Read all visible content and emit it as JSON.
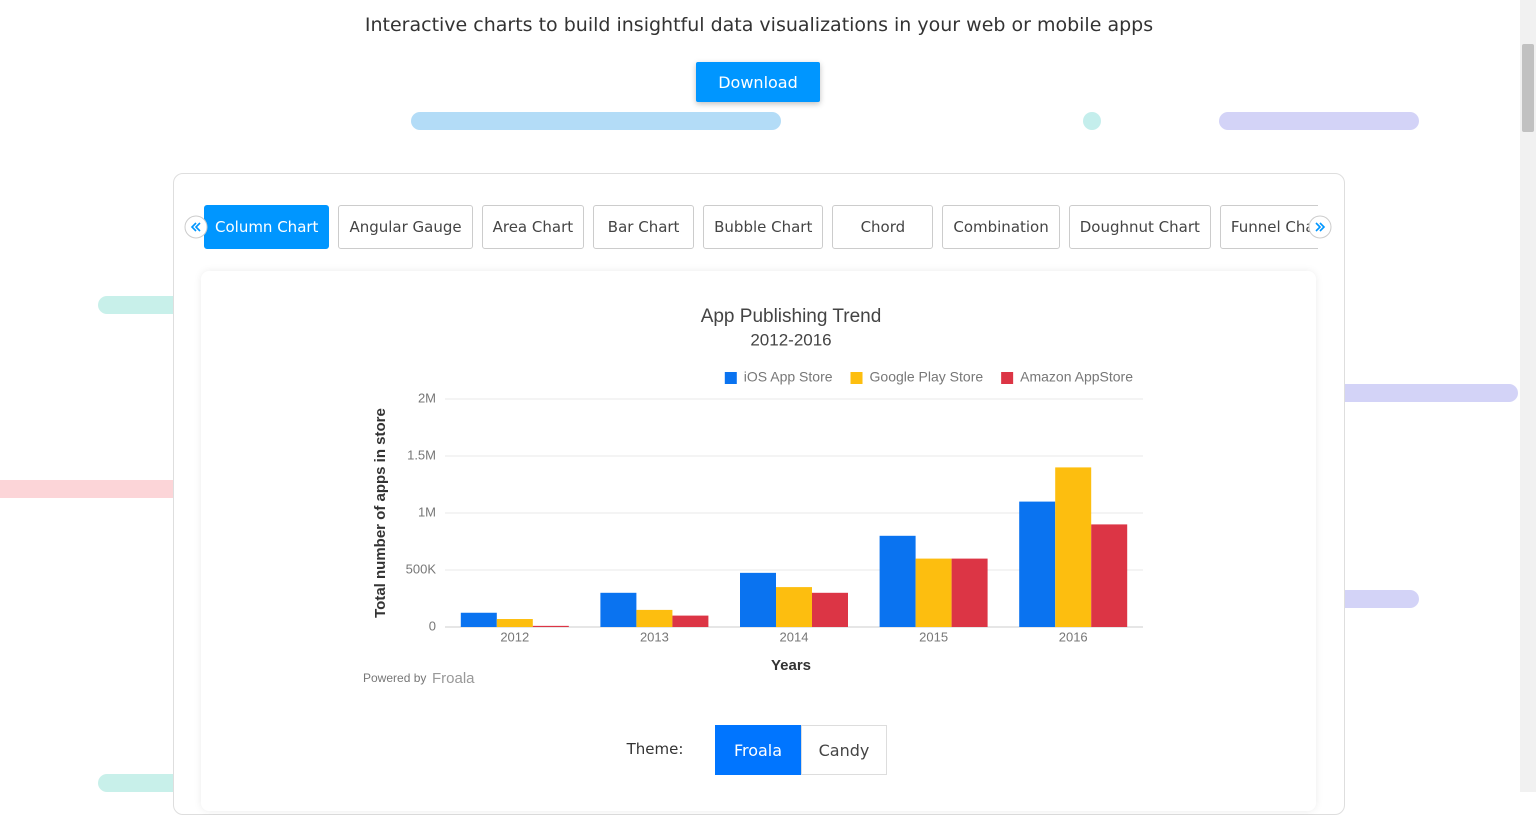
{
  "header": {
    "headline": "Interactive charts to build insightful data visualizations in your web or mobile apps",
    "download_button": "Download"
  },
  "tabs": [
    "Column Chart",
    "Angular Gauge",
    "Area Chart",
    "Bar Chart",
    "Bubble Chart",
    "Chord",
    "Combination",
    "Doughnut Chart",
    "Funnel Chart"
  ],
  "active_tab": 0,
  "chart_data": {
    "type": "bar",
    "title": "App Publishing Trend",
    "subtitle": "2012-2016",
    "x_label": "Years",
    "y_label": "Total number of apps in store",
    "categories": [
      "2012",
      "2013",
      "2014",
      "2015",
      "2016"
    ],
    "series": [
      {
        "name": "iOS App Store",
        "color": "#0a73f0",
        "values": [
          125000,
          300000,
          475000,
          800000,
          1100000
        ]
      },
      {
        "name": "Google Play Store",
        "color": "#fdbe0f",
        "values": [
          70000,
          150000,
          350000,
          600000,
          1400000
        ]
      },
      {
        "name": "Amazon AppStore",
        "color": "#dc3545",
        "values": [
          10000,
          100000,
          300000,
          600000,
          900000
        ]
      }
    ],
    "ylim": [
      0,
      2000000
    ],
    "yticks": [
      0,
      {
        "value": 500000,
        "label": "500K"
      },
      {
        "value": 1000000,
        "label": "1M"
      },
      {
        "value": 1500000,
        "label": "1.5M"
      },
      {
        "value": 2000000,
        "label": "2M"
      }
    ],
    "grid": true,
    "legend": "top-right"
  },
  "credit": {
    "powered_by": "Powered by",
    "brand": "Froala"
  },
  "theme": {
    "label": "Theme:",
    "options": [
      "Froala",
      "Candy"
    ],
    "active": 0
  }
}
